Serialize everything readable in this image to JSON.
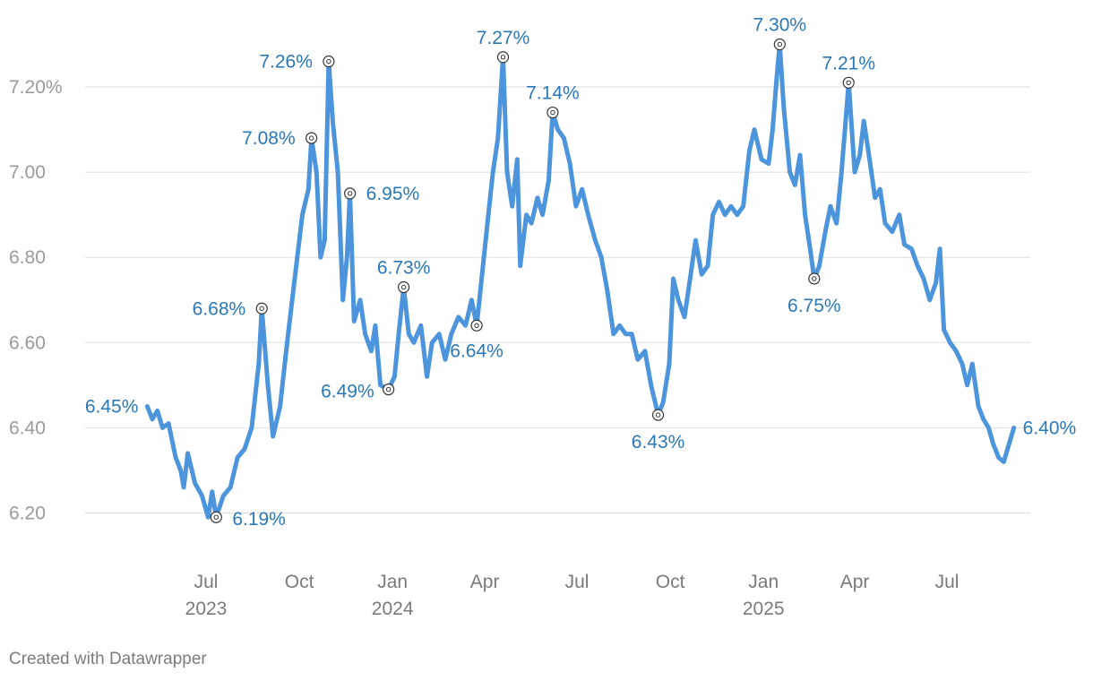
{
  "chart_data": {
    "type": "line",
    "title": "",
    "xlabel": "",
    "ylabel": "",
    "ylim": [
      6.1,
      7.32
    ],
    "xlim": [
      "2023-05-04",
      "2025-09-15"
    ],
    "grid": true,
    "y_ticks": [
      {
        "value": 6.2,
        "label": "6.20"
      },
      {
        "value": 6.4,
        "label": "6.40"
      },
      {
        "value": 6.6,
        "label": "6.60"
      },
      {
        "value": 6.8,
        "label": "6.80"
      },
      {
        "value": 7.0,
        "label": "7.00"
      },
      {
        "value": 7.2,
        "label": "7.20%"
      }
    ],
    "x_ticks": [
      {
        "date": "2023-07-01",
        "label": "Jul",
        "year": "2023"
      },
      {
        "date": "2023-10-01",
        "label": "Oct",
        "year": ""
      },
      {
        "date": "2024-01-01",
        "label": "Jan",
        "year": "2024"
      },
      {
        "date": "2024-04-01",
        "label": "Apr",
        "year": ""
      },
      {
        "date": "2024-07-01",
        "label": "Jul",
        "year": ""
      },
      {
        "date": "2024-10-01",
        "label": "Oct",
        "year": ""
      },
      {
        "date": "2025-01-01",
        "label": "Jan",
        "year": "2025"
      },
      {
        "date": "2025-04-01",
        "label": "Apr",
        "year": ""
      },
      {
        "date": "2025-07-01",
        "label": "Jul",
        "year": ""
      }
    ],
    "series": [
      {
        "color": "#4c95dd",
        "points": [
          [
            "2023-05-04",
            6.45
          ],
          [
            "2023-05-09",
            6.42
          ],
          [
            "2023-05-14",
            6.44
          ],
          [
            "2023-05-19",
            6.4
          ],
          [
            "2023-05-25",
            6.41
          ],
          [
            "2023-06-01",
            6.33
          ],
          [
            "2023-06-06",
            6.3
          ],
          [
            "2023-06-09",
            6.26
          ],
          [
            "2023-06-13",
            6.34
          ],
          [
            "2023-06-20",
            6.27
          ],
          [
            "2023-06-27",
            6.24
          ],
          [
            "2023-07-03",
            6.19
          ],
          [
            "2023-07-07",
            6.25
          ],
          [
            "2023-07-11",
            6.19
          ],
          [
            "2023-07-18",
            6.24
          ],
          [
            "2023-07-25",
            6.26
          ],
          [
            "2023-08-01",
            6.33
          ],
          [
            "2023-08-08",
            6.35
          ],
          [
            "2023-08-15",
            6.4
          ],
          [
            "2023-08-22",
            6.55
          ],
          [
            "2023-08-25",
            6.68
          ],
          [
            "2023-08-31",
            6.5
          ],
          [
            "2023-09-05",
            6.38
          ],
          [
            "2023-09-12",
            6.45
          ],
          [
            "2023-09-19",
            6.6
          ],
          [
            "2023-09-26",
            6.74
          ],
          [
            "2023-09-29",
            6.8
          ],
          [
            "2023-10-04",
            6.9
          ],
          [
            "2023-10-10",
            6.96
          ],
          [
            "2023-10-13",
            7.08
          ],
          [
            "2023-10-18",
            7.0
          ],
          [
            "2023-10-22",
            6.8
          ],
          [
            "2023-10-26",
            6.84
          ],
          [
            "2023-10-30",
            7.26
          ],
          [
            "2023-11-03",
            7.12
          ],
          [
            "2023-11-08",
            7.0
          ],
          [
            "2023-11-13",
            6.7
          ],
          [
            "2023-11-17",
            6.8
          ],
          [
            "2023-11-20",
            6.95
          ],
          [
            "2023-11-24",
            6.65
          ],
          [
            "2023-11-30",
            6.7
          ],
          [
            "2023-12-05",
            6.62
          ],
          [
            "2023-12-11",
            6.58
          ],
          [
            "2023-12-15",
            6.64
          ],
          [
            "2023-12-20",
            6.5
          ],
          [
            "2023-12-28",
            6.49
          ],
          [
            "2024-01-03",
            6.52
          ],
          [
            "2024-01-07",
            6.62
          ],
          [
            "2024-01-12",
            6.73
          ],
          [
            "2024-01-17",
            6.62
          ],
          [
            "2024-01-22",
            6.6
          ],
          [
            "2024-01-29",
            6.64
          ],
          [
            "2024-02-04",
            6.52
          ],
          [
            "2024-02-09",
            6.6
          ],
          [
            "2024-02-16",
            6.62
          ],
          [
            "2024-02-22",
            6.56
          ],
          [
            "2024-02-28",
            6.62
          ],
          [
            "2024-03-06",
            6.66
          ],
          [
            "2024-03-13",
            6.64
          ],
          [
            "2024-03-19",
            6.7
          ],
          [
            "2024-03-24",
            6.64
          ],
          [
            "2024-04-01",
            6.82
          ],
          [
            "2024-04-05",
            6.91
          ],
          [
            "2024-04-09",
            7.0
          ],
          [
            "2024-04-14",
            7.08
          ],
          [
            "2024-04-19",
            7.27
          ],
          [
            "2024-04-23",
            7.0
          ],
          [
            "2024-04-28",
            6.92
          ],
          [
            "2024-05-03",
            7.03
          ],
          [
            "2024-05-06",
            6.78
          ],
          [
            "2024-05-12",
            6.9
          ],
          [
            "2024-05-17",
            6.88
          ],
          [
            "2024-05-23",
            6.94
          ],
          [
            "2024-05-28",
            6.9
          ],
          [
            "2024-06-03",
            6.98
          ],
          [
            "2024-06-07",
            7.14
          ],
          [
            "2024-06-12",
            7.1
          ],
          [
            "2024-06-18",
            7.08
          ],
          [
            "2024-06-24",
            7.02
          ],
          [
            "2024-06-30",
            6.92
          ],
          [
            "2024-07-06",
            6.96
          ],
          [
            "2024-07-12",
            6.9
          ],
          [
            "2024-07-19",
            6.84
          ],
          [
            "2024-07-25",
            6.8
          ],
          [
            "2024-07-31",
            6.72
          ],
          [
            "2024-08-06",
            6.62
          ],
          [
            "2024-08-12",
            6.64
          ],
          [
            "2024-08-18",
            6.62
          ],
          [
            "2024-08-24",
            6.62
          ],
          [
            "2024-08-30",
            6.56
          ],
          [
            "2024-09-06",
            6.58
          ],
          [
            "2024-09-12",
            6.5
          ],
          [
            "2024-09-19",
            6.43
          ],
          [
            "2024-09-24",
            6.46
          ],
          [
            "2024-09-30",
            6.55
          ],
          [
            "2024-10-04",
            6.75
          ],
          [
            "2024-10-09",
            6.7
          ],
          [
            "2024-10-15",
            6.66
          ],
          [
            "2024-10-20",
            6.74
          ],
          [
            "2024-10-26",
            6.84
          ],
          [
            "2024-11-01",
            6.76
          ],
          [
            "2024-11-07",
            6.78
          ],
          [
            "2024-11-12",
            6.9
          ],
          [
            "2024-11-18",
            6.93
          ],
          [
            "2024-11-24",
            6.9
          ],
          [
            "2024-11-30",
            6.92
          ],
          [
            "2024-12-06",
            6.9
          ],
          [
            "2024-12-12",
            6.92
          ],
          [
            "2024-12-18",
            7.05
          ],
          [
            "2024-12-23",
            7.1
          ],
          [
            "2024-12-30",
            7.03
          ],
          [
            "2025-01-06",
            7.02
          ],
          [
            "2025-01-10",
            7.1
          ],
          [
            "2025-01-14",
            7.22
          ],
          [
            "2025-01-17",
            7.3
          ],
          [
            "2025-01-21",
            7.15
          ],
          [
            "2025-01-27",
            7.0
          ],
          [
            "2025-02-01",
            6.97
          ],
          [
            "2025-02-06",
            7.04
          ],
          [
            "2025-02-11",
            6.9
          ],
          [
            "2025-02-16",
            6.82
          ],
          [
            "2025-02-20",
            6.75
          ],
          [
            "2025-02-25",
            6.78
          ],
          [
            "2025-03-03",
            6.86
          ],
          [
            "2025-03-08",
            6.92
          ],
          [
            "2025-03-14",
            6.88
          ],
          [
            "2025-03-19",
            7.0
          ],
          [
            "2025-03-26",
            7.21
          ],
          [
            "2025-04-01",
            7.0
          ],
          [
            "2025-04-06",
            7.04
          ],
          [
            "2025-04-10",
            7.12
          ],
          [
            "2025-04-15",
            7.04
          ],
          [
            "2025-04-21",
            6.94
          ],
          [
            "2025-04-26",
            6.96
          ],
          [
            "2025-05-01",
            6.88
          ],
          [
            "2025-05-08",
            6.86
          ],
          [
            "2025-05-15",
            6.9
          ],
          [
            "2025-05-20",
            6.83
          ],
          [
            "2025-05-27",
            6.82
          ],
          [
            "2025-06-02",
            6.78
          ],
          [
            "2025-06-08",
            6.75
          ],
          [
            "2025-06-14",
            6.7
          ],
          [
            "2025-06-20",
            6.74
          ],
          [
            "2025-06-24",
            6.82
          ],
          [
            "2025-06-28",
            6.63
          ],
          [
            "2025-07-04",
            6.6
          ],
          [
            "2025-07-10",
            6.58
          ],
          [
            "2025-07-16",
            6.55
          ],
          [
            "2025-07-21",
            6.5
          ],
          [
            "2025-07-26",
            6.55
          ],
          [
            "2025-08-01",
            6.45
          ],
          [
            "2025-08-06",
            6.42
          ],
          [
            "2025-08-11",
            6.4
          ],
          [
            "2025-08-16",
            6.36
          ],
          [
            "2025-08-21",
            6.33
          ],
          [
            "2025-08-26",
            6.32
          ],
          [
            "2025-08-31",
            6.36
          ],
          [
            "2025-09-05",
            6.4
          ]
        ]
      }
    ],
    "annotations": [
      {
        "date": "2023-05-04",
        "value": 6.45,
        "label": "6.45%",
        "marker": false,
        "anchor": "end",
        "dx": -10,
        "dy": 0
      },
      {
        "date": "2023-07-11",
        "value": 6.19,
        "label": "6.19%",
        "marker": true,
        "anchor": "start",
        "dx": 18,
        "dy": 2
      },
      {
        "date": "2023-08-25",
        "value": 6.68,
        "label": "6.68%",
        "marker": true,
        "anchor": "end",
        "dx": -18,
        "dy": 0
      },
      {
        "date": "2023-10-13",
        "value": 7.08,
        "label": "7.08%",
        "marker": true,
        "anchor": "end",
        "dx": -18,
        "dy": 0
      },
      {
        "date": "2023-10-30",
        "value": 7.26,
        "label": "7.26%",
        "marker": true,
        "anchor": "end",
        "dx": -18,
        "dy": 0
      },
      {
        "date": "2023-11-20",
        "value": 6.95,
        "label": "6.95%",
        "marker": true,
        "anchor": "start",
        "dx": 18,
        "dy": 0
      },
      {
        "date": "2023-12-28",
        "value": 6.49,
        "label": "6.49%",
        "marker": true,
        "anchor": "end",
        "dx": -16,
        "dy": 2
      },
      {
        "date": "2024-01-12",
        "value": 6.73,
        "label": "6.73%",
        "marker": true,
        "anchor": "middle",
        "dx": 0,
        "dy": -22
      },
      {
        "date": "2024-03-24",
        "value": 6.64,
        "label": "6.64%",
        "marker": true,
        "anchor": "middle",
        "dx": 0,
        "dy": 28
      },
      {
        "date": "2024-04-19",
        "value": 7.27,
        "label": "7.27%",
        "marker": true,
        "anchor": "middle",
        "dx": 0,
        "dy": -22
      },
      {
        "date": "2024-06-07",
        "value": 7.14,
        "label": "7.14%",
        "marker": true,
        "anchor": "middle",
        "dx": 0,
        "dy": -22
      },
      {
        "date": "2024-09-19",
        "value": 6.43,
        "label": "6.43%",
        "marker": true,
        "anchor": "middle",
        "dx": 0,
        "dy": 30
      },
      {
        "date": "2025-01-17",
        "value": 7.3,
        "label": "7.30%",
        "marker": true,
        "anchor": "middle",
        "dx": 0,
        "dy": -22
      },
      {
        "date": "2025-02-20",
        "value": 6.75,
        "label": "6.75%",
        "marker": true,
        "anchor": "middle",
        "dx": 0,
        "dy": 30
      },
      {
        "date": "2025-03-26",
        "value": 7.21,
        "label": "7.21%",
        "marker": true,
        "anchor": "middle",
        "dx": 0,
        "dy": -22
      },
      {
        "date": "2025-09-05",
        "value": 6.4,
        "label": "6.40%",
        "marker": false,
        "anchor": "start",
        "dx": 10,
        "dy": 0
      }
    ]
  },
  "footer": {
    "credit": "Created with Datawrapper"
  }
}
